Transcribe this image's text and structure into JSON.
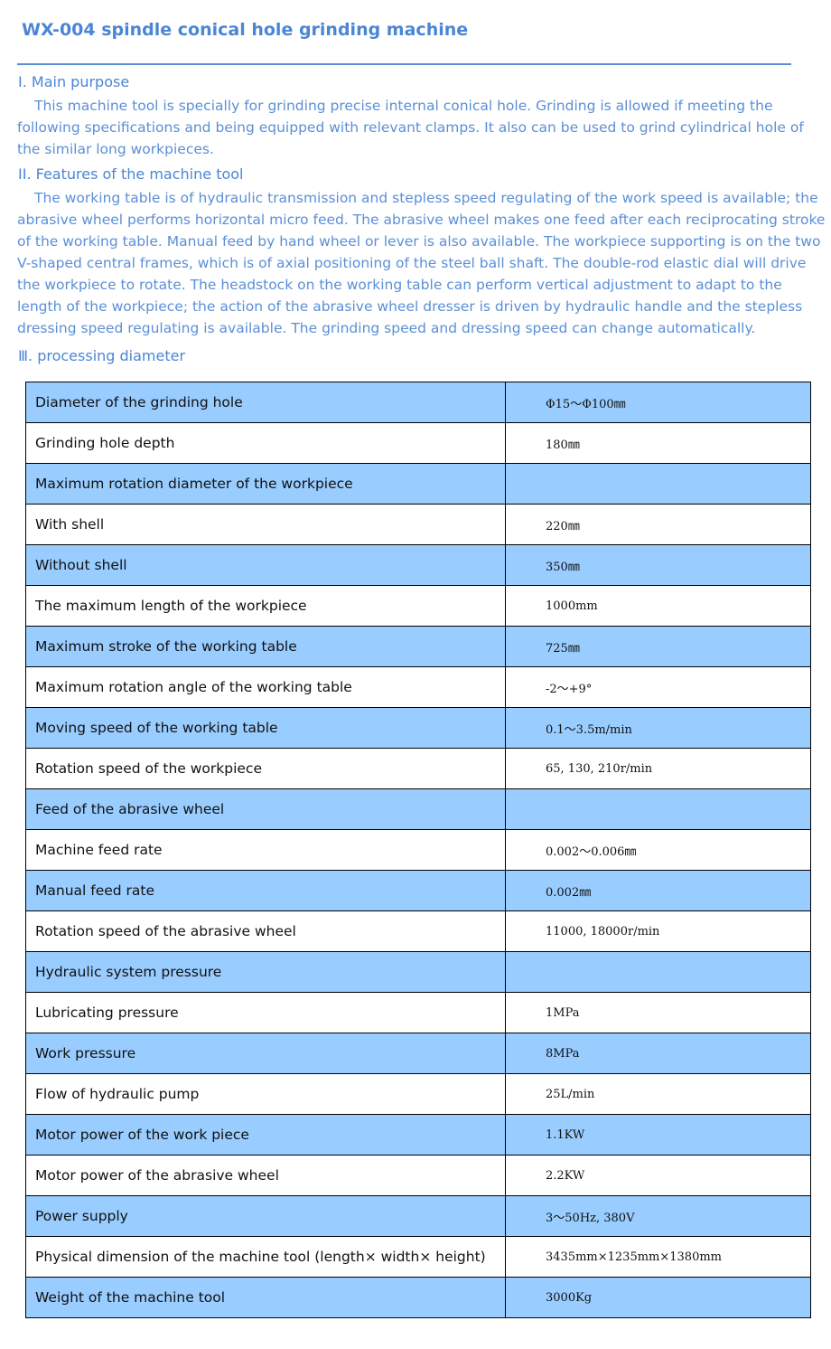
{
  "title": "WX-004 spindle conical hole grinding machine",
  "sections": [
    {
      "heading": "I. Main purpose",
      "text": "This machine tool is specially for grinding precise internal conical hole. Grinding is allowed if meeting the following specifications and being equipped with relevant clamps. It also can be used to grind cylindrical hole of the similar long workpieces."
    },
    {
      "heading": "II. Features of the machine tool",
      "text": "The working table is of hydraulic transmission and stepless speed regulating of the work speed is available; the abrasive wheel performs horizontal micro feed. The abrasive wheel makes one feed after each reciprocating stroke of the working table. Manual feed by hand wheel or lever is also available. The workpiece supporting is on the two V-shaped central frames, which is of axial positioning of the steel ball shaft. The double-rod elastic dial will drive the workpiece to rotate. The headstock on the working table can perform vertical adjustment to adapt to the length of the workpiece; the action of the abrasive wheel dresser is driven by hydraulic handle and the stepless dressing speed regulating is available. The grinding speed and dressing speed can change automatically."
    },
    {
      "heading": "Ⅲ. processing diameter"
    }
  ],
  "table_highlight_color": "#99ccff",
  "rows": [
    [
      "Diameter of the grinding hole",
      "Φ15～Φ100㎜"
    ],
    [
      "Grinding hole depth",
      "180㎜"
    ],
    [
      "Maximum rotation diameter of the workpiece",
      ""
    ],
    [
      "With shell",
      "220㎜"
    ],
    [
      "Without shell",
      "350㎜"
    ],
    [
      "The maximum length of the workpiece",
      "1000mm"
    ],
    [
      "Maximum stroke of the working table",
      "725㎜"
    ],
    [
      "Maximum rotation angle of the working table",
      "-2～+9°"
    ],
    [
      "Moving speed of the working table",
      "0.1～3.5m/min"
    ],
    [
      "Rotation speed of the workpiece",
      "65, 130, 210r/min"
    ],
    [
      "Feed of the abrasive wheel",
      ""
    ],
    [
      "Machine feed rate",
      "0.002～0.006㎜"
    ],
    [
      "Manual feed rate",
      "0.002㎜"
    ],
    [
      "Rotation speed of the abrasive wheel",
      "11000, 18000r/min"
    ],
    [
      "Hydraulic system pressure",
      ""
    ],
    [
      "Lubricating pressure",
      "1MPa"
    ],
    [
      "Work pressure",
      "8MPa"
    ],
    [
      "Flow of hydraulic pump",
      "25L/min"
    ],
    [
      "Motor power of the work piece",
      "1.1KW"
    ],
    [
      "Motor power of the abrasive wheel",
      "2.2KW"
    ],
    [
      "Power supply",
      "3～50Hz, 380V"
    ],
    [
      "Physical dimension of the machine tool (length× width× height)",
      "3435mm×1235mm×1380mm"
    ],
    [
      "Weight of the machine tool",
      "3000Kg"
    ]
  ]
}
